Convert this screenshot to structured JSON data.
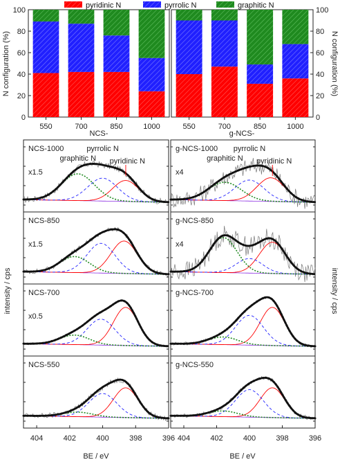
{
  "colors": {
    "pyridinic": "#ff0000",
    "pyrrolic": "#2020ff",
    "graphitic": "#1f8a1f",
    "envelope_dots": "#111111",
    "raw": "#777777",
    "baseline": "#8a2be2"
  },
  "bar_charts": {
    "legend": [
      "pyridinic N",
      "pyrrolic N",
      "graphitic N"
    ],
    "ylabel_left": "N configuration (%)",
    "ylabel_right": "N configuration (%)",
    "yticks": [
      "0",
      "20",
      "40",
      "60",
      "80",
      "100"
    ],
    "charts": [
      {
        "xlabel": "NCS-",
        "categories": [
          "550",
          "700",
          "850",
          "1000"
        ],
        "series": [
          {
            "name": "pyridinic N",
            "values": [
              41,
              42,
              42,
              24
            ]
          },
          {
            "name": "pyrrolic N",
            "values": [
              48,
              45,
              34,
              31
            ]
          },
          {
            "name": "graphitic N",
            "values": [
              11,
              13,
              24,
              45
            ]
          }
        ]
      },
      {
        "xlabel": "g-NCS-",
        "categories": [
          "550",
          "700",
          "850",
          "1000"
        ],
        "series": [
          {
            "name": "pyridinic N",
            "values": [
              40,
              47,
              31,
              36
            ]
          },
          {
            "name": "pyrrolic N",
            "values": [
              50,
              43,
              18,
              32
            ]
          },
          {
            "name": "graphitic N",
            "values": [
              10,
              10,
              51,
              32
            ]
          }
        ]
      }
    ]
  },
  "xps": {
    "ylabel_left": "intensity / cps",
    "ylabel_right": "intensity / cps",
    "xlabel_left": "BE / eV",
    "xlabel_right": "BE / eV",
    "xticks": [
      "404",
      "402",
      "400",
      "398",
      "396"
    ],
    "left_panels": [
      {
        "name": "NCS-1000",
        "scale": "x1.5",
        "annotations": [
          "graphitic N",
          "pyrrolic N",
          "pyridinic N"
        ],
        "peaks": [
          {
            "c": 398.6,
            "h": 0.55,
            "w": 0.8
          },
          {
            "c": 400.0,
            "h": 0.6,
            "w": 0.9
          },
          {
            "c": 401.5,
            "h": 0.7,
            "w": 1.0
          }
        ],
        "noise": 0.08
      },
      {
        "name": "NCS-850",
        "scale": "x1.5",
        "annotations": [],
        "peaks": [
          {
            "c": 398.7,
            "h": 0.85,
            "w": 0.8
          },
          {
            "c": 400.1,
            "h": 0.78,
            "w": 0.85
          },
          {
            "c": 401.7,
            "h": 0.42,
            "w": 0.9
          }
        ],
        "noise": 0.06
      },
      {
        "name": "NCS-700",
        "scale": "x0.5",
        "annotations": [],
        "peaks": [
          {
            "c": 398.6,
            "h": 1.0,
            "w": 0.75
          },
          {
            "c": 400.1,
            "h": 0.68,
            "w": 0.85
          },
          {
            "c": 401.7,
            "h": 0.25,
            "w": 0.9
          }
        ],
        "noise": 0.03
      },
      {
        "name": "NCS-550",
        "scale": "",
        "annotations": [],
        "peaks": [
          {
            "c": 398.6,
            "h": 0.78,
            "w": 0.75
          },
          {
            "c": 400.0,
            "h": 0.62,
            "w": 0.85
          },
          {
            "c": 401.5,
            "h": 0.12,
            "w": 0.9
          }
        ],
        "noise": 0.07
      }
    ],
    "right_panels": [
      {
        "name": "g-NCS-1000",
        "scale": "x4",
        "annotations": [
          "graphitic N",
          "pyrrolic N",
          "pyridinic N"
        ],
        "peaks": [
          {
            "c": 398.7,
            "h": 0.62,
            "w": 0.85
          },
          {
            "c": 400.0,
            "h": 0.55,
            "w": 0.9
          },
          {
            "c": 401.5,
            "h": 0.48,
            "w": 1.0
          }
        ],
        "noise": 0.22
      },
      {
        "name": "g-NCS-850",
        "scale": "x4",
        "annotations": [],
        "peaks": [
          {
            "c": 398.6,
            "h": 0.82,
            "w": 0.8
          },
          {
            "c": 400.0,
            "h": 0.38,
            "w": 0.8
          },
          {
            "c": 401.6,
            "h": 0.92,
            "w": 0.85
          }
        ],
        "noise": 0.25
      },
      {
        "name": "g-NCS-700",
        "scale": "",
        "annotations": [],
        "peaks": [
          {
            "c": 398.6,
            "h": 1.0,
            "w": 0.75
          },
          {
            "c": 400.0,
            "h": 0.78,
            "w": 0.85
          },
          {
            "c": 401.6,
            "h": 0.2,
            "w": 0.9
          }
        ],
        "noise": 0.04
      },
      {
        "name": "g-NCS-550",
        "scale": "",
        "annotations": [],
        "peaks": [
          {
            "c": 398.6,
            "h": 0.78,
            "w": 0.75
          },
          {
            "c": 400.0,
            "h": 0.72,
            "w": 0.85
          },
          {
            "c": 401.6,
            "h": 0.15,
            "w": 0.9
          }
        ],
        "noise": 0.05
      }
    ]
  },
  "chart_data": [
    {
      "type": "bar",
      "categories": [
        "550",
        "700",
        "850",
        "1000"
      ],
      "xlabel": "NCS-",
      "ylabel": "N configuration (%)",
      "ylim": [
        0,
        100
      ],
      "series": [
        {
          "name": "pyridinic N",
          "values": [
            41,
            42,
            42,
            24
          ]
        },
        {
          "name": "pyrrolic N",
          "values": [
            48,
            45,
            34,
            31
          ]
        },
        {
          "name": "graphitic N",
          "values": [
            11,
            13,
            24,
            45
          ]
        }
      ]
    },
    {
      "type": "bar",
      "categories": [
        "550",
        "700",
        "850",
        "1000"
      ],
      "xlabel": "g-NCS-",
      "ylabel": "N configuration (%)",
      "ylim": [
        0,
        100
      ],
      "series": [
        {
          "name": "pyridinic N",
          "values": [
            40,
            47,
            31,
            36
          ]
        },
        {
          "name": "pyrrolic N",
          "values": [
            50,
            43,
            18,
            32
          ]
        },
        {
          "name": "graphitic N",
          "values": [
            10,
            10,
            51,
            32
          ]
        }
      ]
    },
    {
      "type": "line",
      "xlabel": "BE / eV",
      "ylabel": "intensity / cps",
      "xlim": [
        404.5,
        396
      ],
      "panels": [
        "NCS-1000",
        "NCS-850",
        "NCS-700",
        "NCS-550"
      ]
    },
    {
      "type": "line",
      "xlabel": "BE / eV",
      "ylabel": "intensity / cps",
      "xlim": [
        404.5,
        396
      ],
      "panels": [
        "g-NCS-1000",
        "g-NCS-850",
        "g-NCS-700",
        "g-NCS-550"
      ]
    }
  ]
}
